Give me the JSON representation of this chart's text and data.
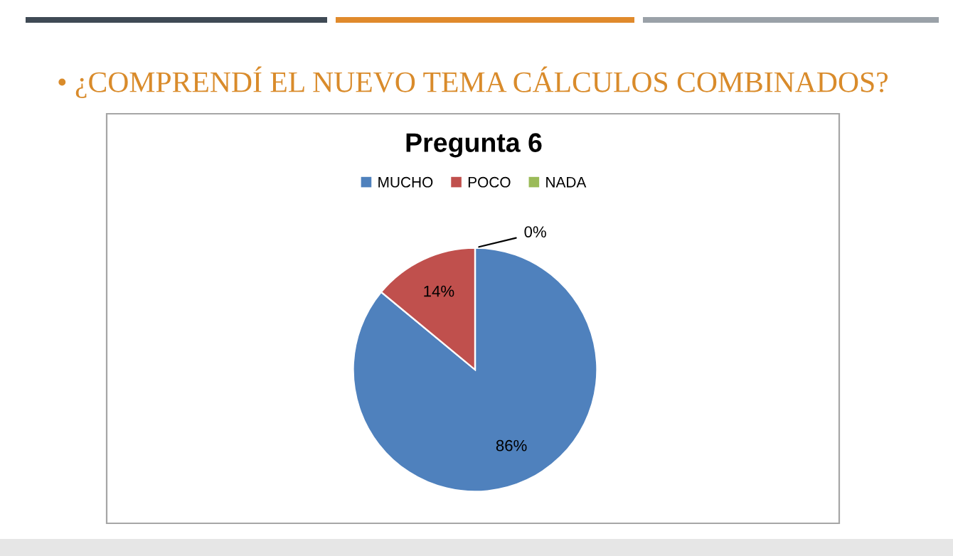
{
  "chart_data": {
    "type": "pie",
    "title": "• ¿COMPRENDÍ EL NUEVO TEMA CÁLCULOS COMBINADOS?",
    "subtitle": "Pregunta 6",
    "categories": [
      "MUCHO",
      "POCO",
      "NADA"
    ],
    "values": [
      86,
      14,
      0
    ],
    "colors": [
      "#4f81bd",
      "#c0504d",
      "#9bbb59"
    ],
    "value_labels": [
      "86%",
      "14%",
      "0%"
    ],
    "legend": "top"
  }
}
